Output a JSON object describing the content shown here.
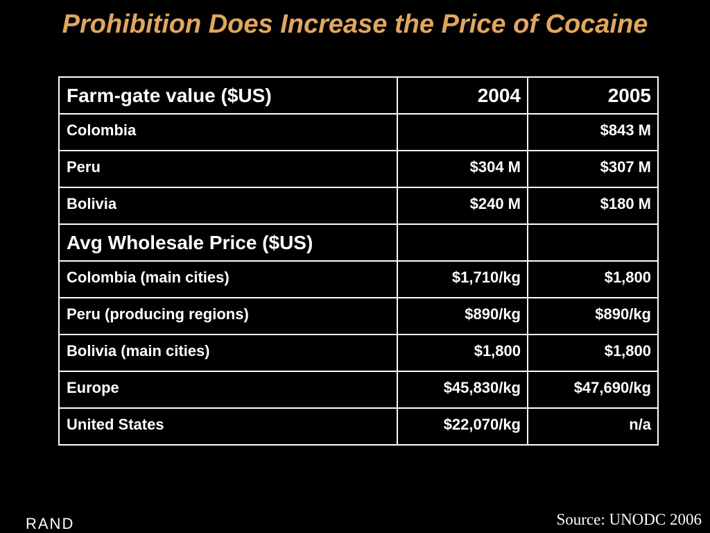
{
  "slide": {
    "title": "Prohibition Does Increase the Price of Cocaine",
    "source": "Source: UNODC 2006",
    "logo": "RAND",
    "title_color": "#E1A65F",
    "background_color": "#000000"
  },
  "table": {
    "rows": [
      {
        "kind": "head",
        "cells": [
          "Farm-gate value ($US)",
          "2004",
          "2005"
        ]
      },
      {
        "kind": "body",
        "cells": [
          "Colombia",
          "",
          "$843 M"
        ]
      },
      {
        "kind": "body",
        "cells": [
          "Peru",
          "$304 M",
          "$307 M"
        ]
      },
      {
        "kind": "body",
        "cells": [
          "Bolivia",
          "$240 M",
          "$180 M"
        ]
      },
      {
        "kind": "head",
        "cells": [
          "Avg Wholesale Price ($US)",
          "",
          ""
        ]
      },
      {
        "kind": "body",
        "cells": [
          "Colombia (main cities)",
          "$1,710/kg",
          "$1,800"
        ]
      },
      {
        "kind": "body",
        "cells": [
          "Peru (producing regions)",
          "$890/kg",
          "$890/kg"
        ]
      },
      {
        "kind": "body",
        "cells": [
          "Bolivia (main cities)",
          "$1,800",
          "$1,800"
        ]
      },
      {
        "kind": "body",
        "cells": [
          "Europe",
          "$45,830/kg",
          "$47,690/kg"
        ]
      },
      {
        "kind": "body",
        "cells": [
          "United States",
          "$22,070/kg",
          "n/a"
        ]
      }
    ]
  }
}
